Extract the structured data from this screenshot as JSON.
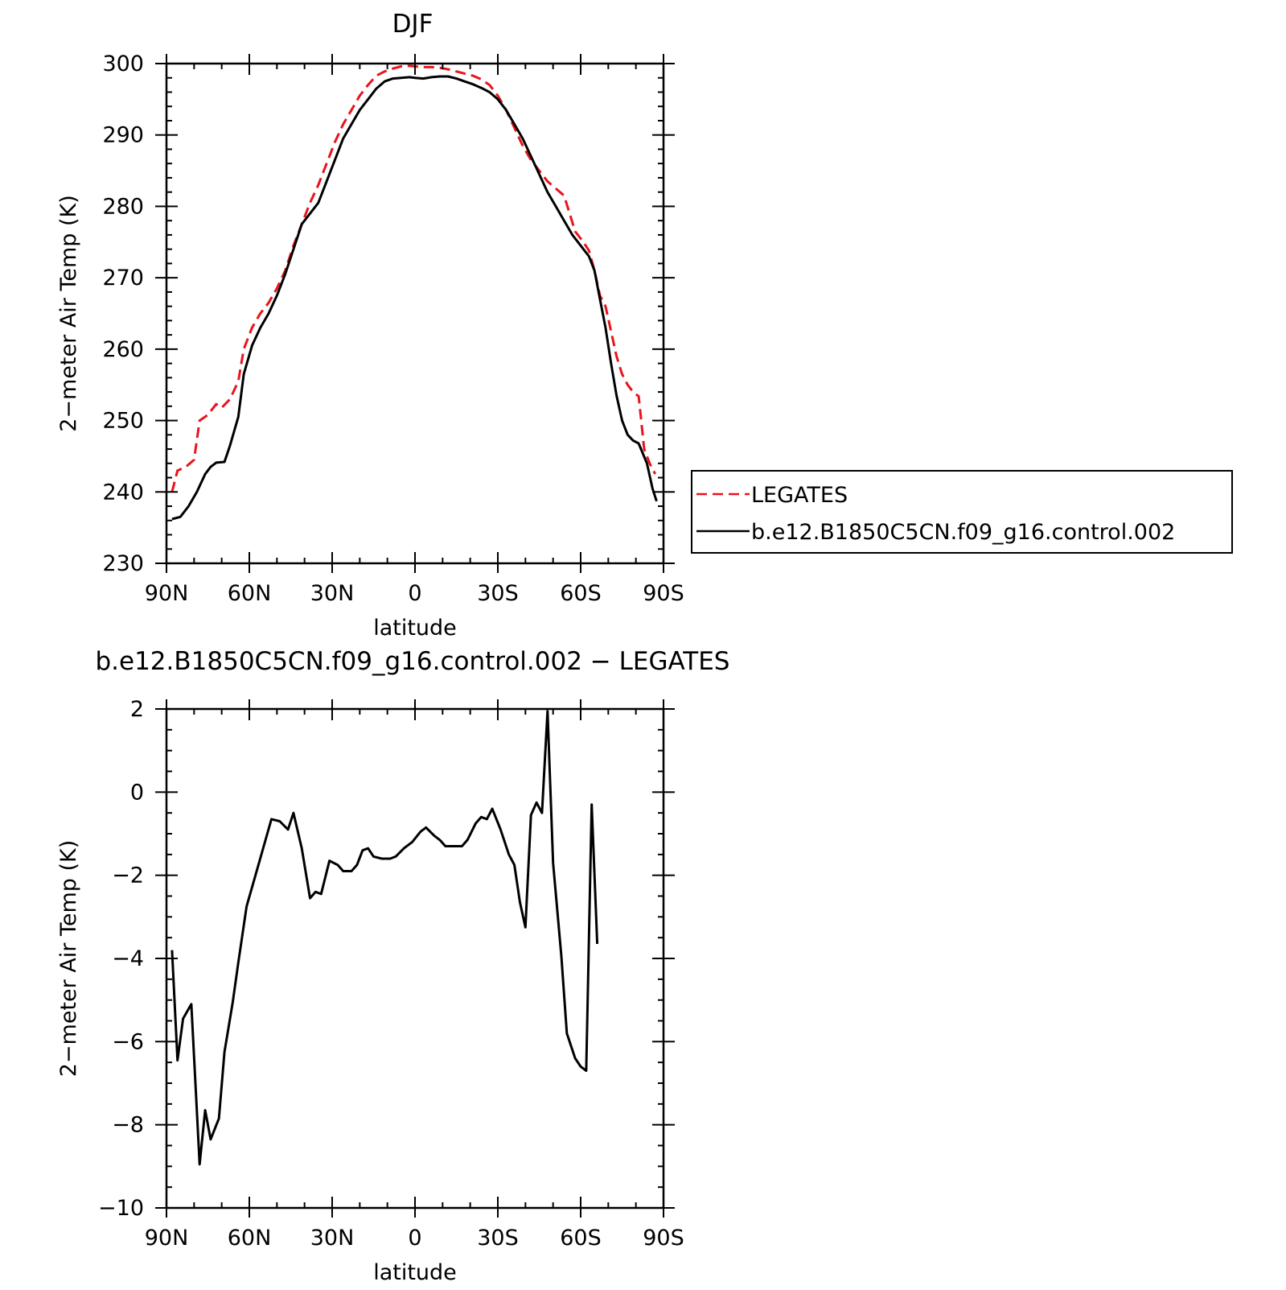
{
  "chart_data": [
    {
      "type": "line",
      "title": "DJF",
      "xlabel": "latitude",
      "ylabel": "2−meter Air Temp (K)",
      "xlim": [
        90,
        -90
      ],
      "ylim": [
        230,
        300
      ],
      "x_ticks": [
        {
          "value": 90,
          "label": "90N"
        },
        {
          "value": 60,
          "label": "60N"
        },
        {
          "value": 30,
          "label": "30N"
        },
        {
          "value": 0,
          "label": "0"
        },
        {
          "value": -30,
          "label": "30S"
        },
        {
          "value": -60,
          "label": "60S"
        },
        {
          "value": -90,
          "label": "90S"
        }
      ],
      "y_ticks": [
        230,
        240,
        250,
        260,
        270,
        280,
        290,
        300
      ],
      "grid": false,
      "legend_position": "right",
      "series": [
        {
          "name": "LEGATES",
          "color": "#e8141c",
          "dash": true,
          "points": [
            [
              88,
              240
            ],
            [
              86,
              243
            ],
            [
              83,
              243.5
            ],
            [
              80,
              244.5
            ],
            [
              78,
              250
            ],
            [
              75,
              250.8
            ],
            [
              72,
              252.3
            ],
            [
              70,
              251.8
            ],
            [
              67,
              253
            ],
            [
              64,
              255.5
            ],
            [
              62,
              260
            ],
            [
              59,
              263
            ],
            [
              56,
              265
            ],
            [
              53,
              266.5
            ],
            [
              50,
              268.5
            ],
            [
              47,
              271
            ],
            [
              44,
              274.5
            ],
            [
              41,
              277.5
            ],
            [
              38,
              280.5
            ],
            [
              35,
              283
            ],
            [
              32,
              286
            ],
            [
              29,
              289
            ],
            [
              26,
              291.5
            ],
            [
              23,
              293.5
            ],
            [
              20,
              295.5
            ],
            [
              17,
              297
            ],
            [
              14,
              298.3
            ],
            [
              11,
              298.9
            ],
            [
              8,
              299.3
            ],
            [
              5,
              299.6
            ],
            [
              2,
              299.7
            ],
            [
              0,
              299.6
            ],
            [
              -3,
              299.5
            ],
            [
              -6,
              299.5
            ],
            [
              -9,
              299.4
            ],
            [
              -12,
              299.2
            ],
            [
              -15,
              298.9
            ],
            [
              -18,
              298.6
            ],
            [
              -21,
              298.3
            ],
            [
              -24,
              297.8
            ],
            [
              -27,
              297
            ],
            [
              -30,
              295.5
            ],
            [
              -33,
              293.5
            ],
            [
              -36,
              291
            ],
            [
              -39,
              288.5
            ],
            [
              -42,
              286.5
            ],
            [
              -45,
              285
            ],
            [
              -48,
              283.5
            ],
            [
              -51,
              282.5
            ],
            [
              -54,
              281.5
            ],
            [
              -56,
              279
            ],
            [
              -58,
              276.5
            ],
            [
              -61,
              275
            ],
            [
              -63,
              273.8
            ],
            [
              -65,
              271
            ],
            [
              -67,
              267.5
            ],
            [
              -69,
              266
            ],
            [
              -71,
              262.5
            ],
            [
              -73,
              259
            ],
            [
              -75,
              256.5
            ],
            [
              -77,
              255
            ],
            [
              -79,
              254
            ],
            [
              -81,
              253.4
            ],
            [
              -83,
              246
            ],
            [
              -85,
              244
            ],
            [
              -87,
              242.5
            ]
          ]
        },
        {
          "name": "b.e12.B1850C5CN.f09_g16.control.002",
          "color": "#000000",
          "dash": false,
          "points": [
            [
              88,
              236.2
            ],
            [
              85,
              236.5
            ],
            [
              82,
              238
            ],
            [
              79,
              240
            ],
            [
              76,
              242.5
            ],
            [
              74,
              243.5
            ],
            [
              72,
              244.1
            ],
            [
              69,
              244.2
            ],
            [
              67,
              246.5
            ],
            [
              64,
              250.5
            ],
            [
              62,
              256.5
            ],
            [
              59,
              260.5
            ],
            [
              56,
              263
            ],
            [
              53,
              265
            ],
            [
              50,
              267.5
            ],
            [
              47,
              270.5
            ],
            [
              44,
              274
            ],
            [
              41,
              277.5
            ],
            [
              38,
              279
            ],
            [
              35,
              280.5
            ],
            [
              32,
              283.5
            ],
            [
              29,
              286.5
            ],
            [
              26,
              289.5
            ],
            [
              23,
              291.5
            ],
            [
              20,
              293.5
            ],
            [
              17,
              295
            ],
            [
              14,
              296.5
            ],
            [
              11,
              297.5
            ],
            [
              8,
              297.9
            ],
            [
              5,
              298
            ],
            [
              2,
              298.1
            ],
            [
              0,
              298
            ],
            [
              -3,
              297.9
            ],
            [
              -6,
              298.1
            ],
            [
              -9,
              298.2
            ],
            [
              -12,
              298.2
            ],
            [
              -15,
              297.9
            ],
            [
              -18,
              297.5
            ],
            [
              -21,
              297.1
            ],
            [
              -24,
              296.6
            ],
            [
              -27,
              296
            ],
            [
              -30,
              295
            ],
            [
              -33,
              293.5
            ],
            [
              -36,
              291.5
            ],
            [
              -39,
              289.5
            ],
            [
              -42,
              287
            ],
            [
              -45,
              284.5
            ],
            [
              -48,
              282
            ],
            [
              -51,
              280
            ],
            [
              -54,
              278
            ],
            [
              -57,
              276
            ],
            [
              -60,
              274.5
            ],
            [
              -63,
              273
            ],
            [
              -65,
              271
            ],
            [
              -67,
              267
            ],
            [
              -69,
              263
            ],
            [
              -71,
              258
            ],
            [
              -73,
              253.5
            ],
            [
              -75,
              250
            ],
            [
              -77,
              248
            ],
            [
              -79,
              247.2
            ],
            [
              -81,
              246.8
            ],
            [
              -84,
              244
            ],
            [
              -86,
              240.5
            ],
            [
              -87.5,
              238.7
            ]
          ]
        }
      ]
    },
    {
      "type": "line",
      "title": "b.e12.B1850C5CN.f09_g16.control.002 − LEGATES",
      "xlabel": "latitude",
      "ylabel": "2−meter Air Temp (K)",
      "xlim": [
        90,
        -90
      ],
      "ylim": [
        -10,
        2
      ],
      "x_ticks": [
        {
          "value": 90,
          "label": "90N"
        },
        {
          "value": 60,
          "label": "60N"
        },
        {
          "value": 30,
          "label": "30N"
        },
        {
          "value": 0,
          "label": "0"
        },
        {
          "value": -30,
          "label": "30S"
        },
        {
          "value": -60,
          "label": "60S"
        },
        {
          "value": -90,
          "label": "90S"
        }
      ],
      "y_ticks": [
        -10,
        -8,
        -6,
        -4,
        -2,
        0,
        2
      ],
      "grid": false,
      "series": [
        {
          "color": "#000000",
          "dash": false,
          "points": [
            [
              88,
              -3.8
            ],
            [
              86,
              -6.45
            ],
            [
              84,
              -5.45
            ],
            [
              81,
              -5.1
            ],
            [
              78,
              -8.95
            ],
            [
              76,
              -7.65
            ],
            [
              74,
              -8.35
            ],
            [
              71,
              -7.85
            ],
            [
              69,
              -6.25
            ],
            [
              66,
              -5.05
            ],
            [
              64,
              -4.1
            ],
            [
              61,
              -2.75
            ],
            [
              58,
              -2.05
            ],
            [
              55,
              -1.35
            ],
            [
              52,
              -0.65
            ],
            [
              49,
              -0.7
            ],
            [
              46,
              -0.9
            ],
            [
              44,
              -0.5
            ],
            [
              41,
              -1.35
            ],
            [
              38,
              -2.55
            ],
            [
              36,
              -2.4
            ],
            [
              34,
              -2.45
            ],
            [
              31,
              -1.65
            ],
            [
              28,
              -1.75
            ],
            [
              26,
              -1.9
            ],
            [
              23,
              -1.9
            ],
            [
              21,
              -1.75
            ],
            [
              19,
              -1.4
            ],
            [
              17,
              -1.35
            ],
            [
              15,
              -1.55
            ],
            [
              12,
              -1.6
            ],
            [
              9,
              -1.6
            ],
            [
              7,
              -1.55
            ],
            [
              4,
              -1.35
            ],
            [
              1,
              -1.2
            ],
            [
              -2,
              -0.95
            ],
            [
              -4,
              -0.85
            ],
            [
              -7,
              -1.05
            ],
            [
              -9,
              -1.15
            ],
            [
              -11,
              -1.3
            ],
            [
              -14,
              -1.3
            ],
            [
              -17,
              -1.3
            ],
            [
              -19,
              -1.15
            ],
            [
              -22,
              -0.75
            ],
            [
              -24,
              -0.6
            ],
            [
              -26,
              -0.65
            ],
            [
              -28,
              -0.4
            ],
            [
              -31,
              -0.9
            ],
            [
              -34,
              -1.5
            ],
            [
              -36,
              -1.75
            ],
            [
              -38,
              -2.65
            ],
            [
              -40,
              -3.25
            ],
            [
              -42,
              -0.55
            ],
            [
              -44,
              -0.25
            ],
            [
              -46,
              -0.5
            ],
            [
              -48,
              1.95
            ],
            [
              -50,
              -1.7
            ],
            [
              -53,
              -3.95
            ],
            [
              -55,
              -5.8
            ],
            [
              -58,
              -6.4
            ],
            [
              -60,
              -6.6
            ],
            [
              -62,
              -6.7
            ],
            [
              -64,
              -0.3
            ],
            [
              -66,
              -3.65
            ]
          ]
        }
      ]
    }
  ]
}
